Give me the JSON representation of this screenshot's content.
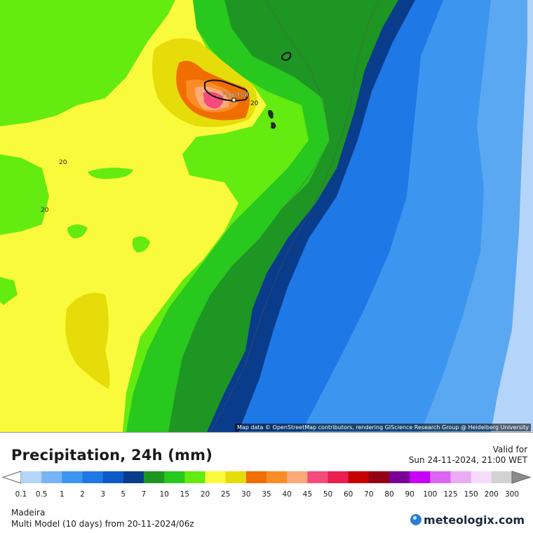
{
  "map": {
    "city_label": "Funchal",
    "contour_labels": [
      "20",
      "20",
      "20"
    ],
    "attribution": "Map data © OpenStreetMap contributors, rendering GIScience Research Group @ Heidelberg University"
  },
  "header": {
    "title": "Precipitation, 24h (mm)",
    "valid_label": "Valid for",
    "valid_time": "Sun 24-11-2024, 21:00 WET"
  },
  "legend": {
    "thresholds": [
      "0.1",
      "0.5",
      "1",
      "2",
      "3",
      "5",
      "7",
      "10",
      "15",
      "20",
      "25",
      "30",
      "35",
      "40",
      "45",
      "50",
      "60",
      "70",
      "80",
      "90",
      "100",
      "125",
      "150",
      "200",
      "300"
    ],
    "colors": [
      "#b4d4fa",
      "#78b4f5",
      "#3c96ef",
      "#1e78e6",
      "#0c5ac8",
      "#0a3c8c",
      "#1e9623",
      "#28c81e",
      "#64eb0f",
      "#fafa3c",
      "#e6dc0a",
      "#f06e00",
      "#fa8c28",
      "#fcaa78",
      "#f54b7d",
      "#eb1e50",
      "#c80000",
      "#960014",
      "#780096",
      "#c800fa",
      "#dc64f5",
      "#ebaaf5",
      "#f5dcfa",
      "#d2d2d2"
    ]
  },
  "footer": {
    "region": "Madeira",
    "model_line": "Multi Model (10 days) from  20-11-2024/06z",
    "logo_text": "meteologix.com"
  }
}
